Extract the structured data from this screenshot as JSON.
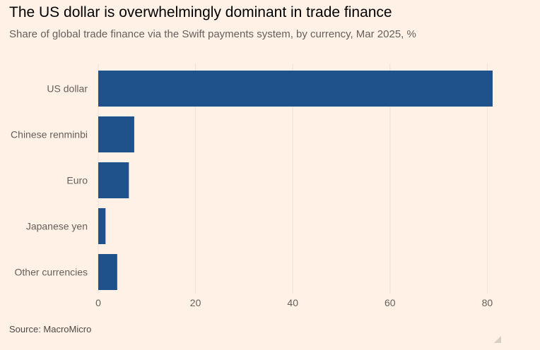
{
  "header": {
    "title": "The US dollar is overwhelmingly dominant in trade finance",
    "subtitle": "Share of global trade finance via the Swift payments system, by currency, Mar 2025, %"
  },
  "footer": {
    "source": "Source: MacroMicro"
  },
  "colors": {
    "background": "#fff1e5",
    "bar": "#1f528a",
    "grid": "#eee2d8",
    "axis_text": "#66605c"
  },
  "chart_data": {
    "type": "bar",
    "orientation": "horizontal",
    "categories": [
      "US dollar",
      "Chinese renminbi",
      "Euro",
      "Japanese yen",
      "Other currencies"
    ],
    "values": [
      81.1,
      7.4,
      6.3,
      1.5,
      3.9
    ],
    "xlim": [
      0,
      85
    ],
    "xticks": [
      0,
      20,
      40,
      60,
      80
    ],
    "grid": true,
    "title": "The US dollar is overwhelmingly dominant in trade finance",
    "subtitle": "Share of global trade finance via the Swift payments system, by currency, Mar 2025, %",
    "xlabel": "",
    "ylabel": ""
  }
}
